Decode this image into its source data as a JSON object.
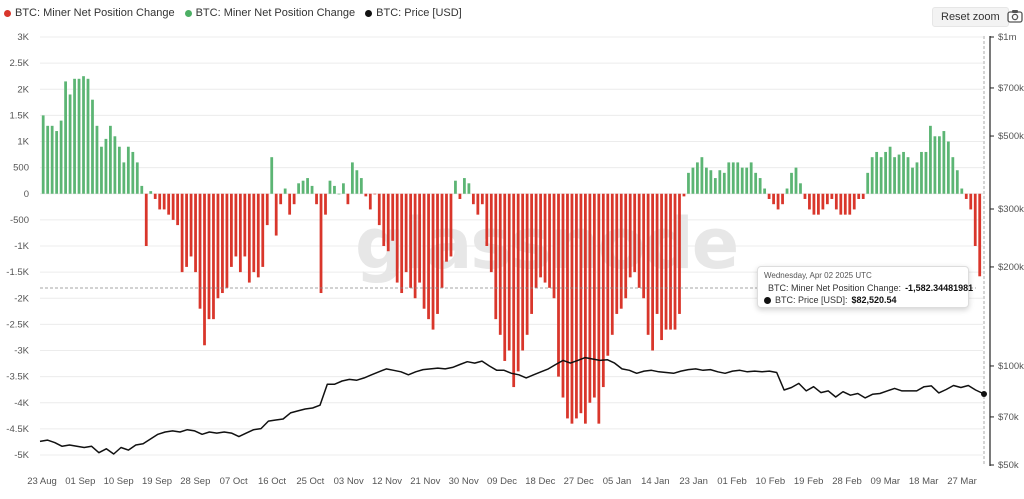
{
  "legend": [
    {
      "label": "BTC: Miner Net Position Change",
      "color": "#d9362b"
    },
    {
      "label": "BTC: Miner Net Position Change",
      "color": "#4caf64"
    },
    {
      "label": "BTC: Price [USD]",
      "color": "#111111"
    }
  ],
  "reset_zoom": "Reset zoom",
  "watermark": "glassnode",
  "tooltip": {
    "date": "Wednesday, Apr 02 2025 UTC",
    "row1_label": "BTC: Miner Net Position Change:",
    "row1_value": "-1,582.34481981",
    "row2_label": "BTC: Price [USD]:",
    "row2_value": "$82,520.54"
  },
  "colors": {
    "negative": "#d9362b",
    "positive": "#5cb574",
    "price": "#111111"
  },
  "chart_data": {
    "type": "bar",
    "x_tick_labels": [
      "23 Aug",
      "01 Sep",
      "10 Sep",
      "19 Sep",
      "28 Sep",
      "07 Oct",
      "16 Oct",
      "25 Oct",
      "03 Nov",
      "12 Nov",
      "21 Nov",
      "30 Nov",
      "09 Dec",
      "18 Dec",
      "27 Dec",
      "05 Jan",
      "14 Jan",
      "23 Jan",
      "01 Feb",
      "10 Feb",
      "19 Feb",
      "28 Feb",
      "09 Mar",
      "18 Mar",
      "27 Mar"
    ],
    "left_axis": {
      "ticks": [
        3000,
        2500,
        2000,
        1500,
        1000,
        500,
        0,
        -500,
        -1000,
        -1500,
        -2000,
        -2500,
        -3000,
        -3500,
        -4000,
        -4500,
        -5000
      ],
      "labels": [
        "3K",
        "2.5K",
        "2K",
        "1.5K",
        "1K",
        "500",
        "0",
        "-500",
        "-1K",
        "-1.5K",
        "-2K",
        "-2.5K",
        "-3K",
        "-3.5K",
        "-4K",
        "-4.5K",
        "-5K"
      ],
      "range": [
        -5000,
        3000
      ]
    },
    "right_axis": {
      "scale": "log",
      "ticks": [
        1000000,
        700000,
        500000,
        300000,
        200000,
        100000,
        70000,
        50000
      ],
      "labels": [
        "$1m",
        "$700k",
        "$500k",
        "$300k",
        "$200k",
        "$100k",
        "$70k",
        "$50k"
      ],
      "range": [
        50000,
        1000000
      ]
    },
    "start_date": "2024-08-23",
    "series": [
      {
        "name": "BTC: Miner Net Position Change",
        "type": "bar",
        "values": [
          1500,
          1300,
          1300,
          1200,
          1400,
          2150,
          1900,
          2200,
          2200,
          2250,
          2200,
          1800,
          1300,
          900,
          1050,
          1300,
          1100,
          900,
          600,
          900,
          800,
          600,
          150,
          -1000,
          50,
          -100,
          -300,
          -300,
          -400,
          -500,
          -600,
          -1500,
          -1400,
          -1200,
          -1500,
          -2200,
          -2900,
          -2400,
          -2400,
          -2000,
          -1900,
          -1800,
          -1400,
          -1200,
          -1500,
          -1200,
          -1700,
          -1500,
          -1600,
          -1400,
          -600,
          700,
          -800,
          -200,
          100,
          -400,
          -200,
          200,
          250,
          300,
          150,
          -200,
          -1900,
          -400,
          250,
          150,
          0,
          200,
          -200,
          600,
          450,
          300,
          -50,
          -300,
          -10,
          -600,
          -1000,
          -1100,
          -900,
          -1700,
          -1900,
          -1500,
          -1800,
          -2000,
          -1700,
          -2200,
          -2400,
          -2600,
          -2300,
          -1800,
          -1300,
          -1200,
          250,
          -100,
          300,
          200,
          -200,
          -400,
          -200,
          -1000,
          -1500,
          -2400,
          -2700,
          -3200,
          -3000,
          -3700,
          -3400,
          -3000,
          -2700,
          -2300,
          -1800,
          -1600,
          -1700,
          -1800,
          -2000,
          -3500,
          -3900,
          -4300,
          -4400,
          -4300,
          -4200,
          -4400,
          -4000,
          -3900,
          -4400,
          -3700,
          -3100,
          -2700,
          -2300,
          -2200,
          -2000,
          -1600,
          -1500,
          -1800,
          -2000,
          -2700,
          -3000,
          -2300,
          -2800,
          -2600,
          -2600,
          -2600,
          -2300,
          -50,
          400,
          500,
          600,
          700,
          500,
          450,
          300,
          450,
          400,
          600,
          600,
          600,
          500,
          500,
          600,
          400,
          300,
          100,
          -100,
          -200,
          -300,
          -200,
          100,
          400,
          500,
          200,
          -100,
          -300,
          -400,
          -400,
          -300,
          -200,
          -100,
          -300,
          -400,
          -400,
          -400,
          -300,
          -100,
          -100,
          400,
          700,
          800,
          700,
          800,
          900,
          700,
          750,
          800,
          700,
          500,
          600,
          800,
          800,
          1300,
          1100,
          1100,
          1200,
          1000,
          700,
          450,
          100,
          -100,
          -300,
          -1000,
          -1580
        ]
      },
      {
        "name": "BTC: Price [USD]",
        "type": "line",
        "values": [
          59000,
          59500,
          58500,
          57000,
          57500,
          57000,
          56500,
          57000,
          54500,
          56000,
          54000,
          56500,
          55500,
          57500,
          58000,
          60000,
          62000,
          63000,
          63500,
          63000,
          64000,
          63500,
          62000,
          63000,
          62500,
          63000,
          62500,
          61000,
          62500,
          64000,
          64500,
          68000,
          68500,
          69000,
          72000,
          73000,
          74000,
          74500,
          76000,
          88000,
          88000,
          90000,
          91000,
          90500,
          92000,
          94000,
          96000,
          98000,
          97000,
          96000,
          94000,
          96000,
          97500,
          98000,
          98500,
          98000,
          99000,
          101000,
          103000,
          102000,
          103500,
          100000,
          97000,
          97000,
          95000,
          94000,
          92000,
          94000,
          96000,
          98000,
          101000,
          104000,
          102000,
          104000,
          106000,
          105000,
          104000,
          104500,
          102000,
          98000,
          97000,
          95000,
          96500,
          97000,
          96000,
          95500,
          95000,
          96500,
          97500,
          98000,
          97000,
          97500,
          96000,
          95000,
          96500,
          97000,
          96000,
          96500,
          96000,
          96500,
          95500,
          84500,
          86000,
          88500,
          84000,
          86500,
          83000,
          84000,
          80500,
          83500,
          81500,
          82500,
          80000,
          82000,
          82500,
          84000,
          85500,
          84000,
          84000,
          84000,
          86500,
          87000,
          82800,
          84800,
          87200,
          86000,
          87200,
          84500,
          82500
        ]
      }
    ]
  }
}
